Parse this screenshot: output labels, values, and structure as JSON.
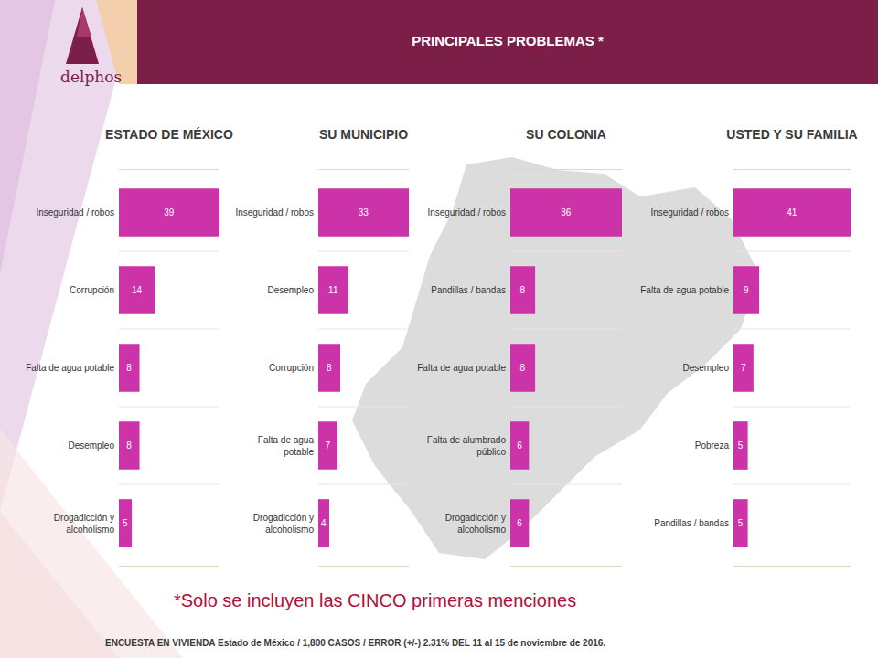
{
  "header": {
    "title": "PRINCIPALES PROBLEMAS *",
    "logo": "delphos"
  },
  "chart_data": [
    {
      "type": "bar",
      "orientation": "horizontal",
      "title": "ESTADO DE MÉXICO",
      "categories": [
        "Inseguridad / robos",
        "Corrupción",
        "Falta de agua potable",
        "Desempleo",
        "Drogadicción y alcoholismo"
      ],
      "values": [
        39,
        14,
        8,
        8,
        5
      ],
      "color": "#cc33a8",
      "xlim": [
        0,
        39
      ],
      "data_labels": true,
      "tick_labels": "y"
    },
    {
      "type": "bar",
      "orientation": "horizontal",
      "title": "SU MUNICIPIO",
      "categories": [
        "Inseguridad / robos",
        "Desempleo",
        "Corrupción",
        "Falta de agua potable",
        "Drogadicción y alcoholismo"
      ],
      "values": [
        33,
        11,
        8,
        7,
        4
      ],
      "color": "#cc33a8",
      "xlim": [
        0,
        33
      ],
      "data_labels": true,
      "tick_labels": "y"
    },
    {
      "type": "bar",
      "orientation": "horizontal",
      "title": "SU COLONIA",
      "categories": [
        "Inseguridad / robos",
        "Pandillas / bandas",
        "Falta de agua potable",
        "Falta de alumbrado público",
        "Drogadicción y alcoholismo"
      ],
      "values": [
        36,
        8,
        8,
        6,
        6
      ],
      "color": "#cc33a8",
      "xlim": [
        0,
        36
      ],
      "data_labels": true,
      "tick_labels": "y"
    },
    {
      "type": "bar",
      "orientation": "horizontal",
      "title": "USTED Y SU FAMILIA",
      "categories": [
        "Inseguridad / robos",
        "Falta de agua potable",
        "Desempleo",
        "Pobreza",
        "Pandillas / bandas"
      ],
      "values": [
        41,
        9,
        7,
        5,
        5
      ],
      "color": "#cc33a8",
      "xlim": [
        0,
        41
      ],
      "data_labels": true,
      "tick_labels": "y"
    }
  ],
  "footnote": "*Solo se incluyen las CINCO primeras menciones",
  "source": "ENCUESTA EN VIVIENDA Estado de México /  1,800 CASOS / ERROR (+/-) 2.31% DEL 11 al 15 de noviembre de 2016."
}
